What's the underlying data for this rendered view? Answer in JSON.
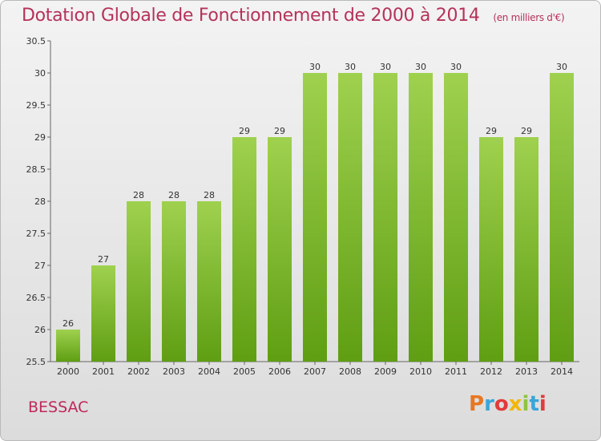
{
  "header": {
    "title": "Dotation Globale de Fonctionnement de 2000 à 2014",
    "unit": "(en milliers d'€)"
  },
  "footer": {
    "commune": "BESSAC",
    "logo": "Proxiti",
    "logo_colors": [
      "#e87722",
      "#3aa6d8",
      "#e23b3b",
      "#f2b705",
      "#8cc63f",
      "#3aa6d8",
      "#e23b3b"
    ]
  },
  "chart_data": {
    "type": "bar",
    "categories": [
      "2000",
      "2001",
      "2002",
      "2003",
      "2004",
      "2005",
      "2006",
      "2007",
      "2008",
      "2009",
      "2010",
      "2011",
      "2012",
      "2013",
      "2014"
    ],
    "values": [
      26,
      27,
      28,
      28,
      28,
      29,
      29,
      30,
      30,
      30,
      30,
      30,
      29,
      29,
      30
    ],
    "data_labels": [
      "26",
      "27",
      "28",
      "28",
      "28",
      "29",
      "29",
      "30",
      "30",
      "30",
      "30",
      "30",
      "29",
      "29",
      "30"
    ],
    "yticks": [
      "25.5",
      "26",
      "26.5",
      "27",
      "27.5",
      "28",
      "28.5",
      "29",
      "29.5",
      "30",
      "30.5"
    ],
    "ylim": [
      25.5,
      30.5
    ],
    "grid": false,
    "bar_color_top": "#9fd14f",
    "bar_color_bottom": "#5f9e13"
  }
}
